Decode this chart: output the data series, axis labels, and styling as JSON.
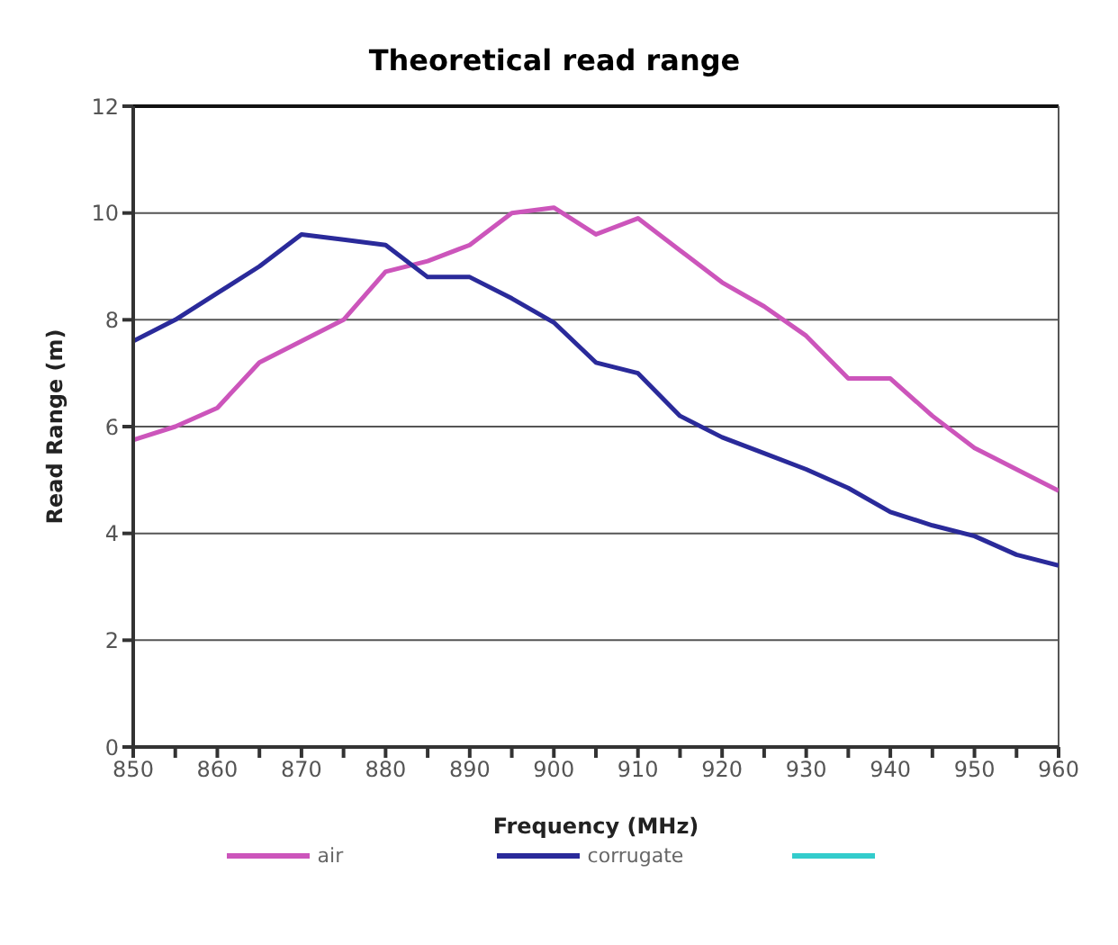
{
  "chart_data": {
    "type": "line",
    "title": "Theoretical read range",
    "xlabel": "Frequency (MHz)",
    "ylabel": "Read Range (m)",
    "x": [
      850,
      855,
      860,
      865,
      870,
      875,
      880,
      885,
      890,
      895,
      900,
      905,
      910,
      915,
      920,
      925,
      930,
      935,
      940,
      945,
      950,
      955,
      960
    ],
    "series": [
      {
        "name": "air",
        "color": "#cc55bb",
        "values": [
          5.75,
          6.0,
          6.35,
          7.2,
          7.6,
          8.0,
          8.9,
          9.1,
          9.4,
          10.0,
          10.1,
          9.6,
          9.9,
          9.3,
          8.7,
          8.25,
          7.7,
          6.9,
          6.9,
          6.2,
          5.6,
          5.2,
          4.8
        ]
      },
      {
        "name": "corrugate",
        "color": "#2a2a9a",
        "values": [
          7.6,
          8.0,
          8.5,
          9.0,
          9.6,
          9.5,
          9.4,
          8.8,
          8.8,
          8.4,
          7.95,
          7.2,
          7.0,
          6.2,
          5.8,
          5.5,
          5.2,
          4.85,
          4.4,
          4.15,
          3.95,
          3.6,
          3.4
        ]
      },
      {
        "color": "#33cccc",
        "values": [
          null,
          null,
          null,
          null,
          null,
          null,
          null,
          null,
          null,
          null,
          null,
          null,
          null,
          null,
          null,
          null,
          null,
          null,
          null,
          null,
          null,
          null,
          null
        ]
      }
    ],
    "xlim": [
      850,
      960
    ],
    "xticks": [
      850,
      {
        "value": 855,
        "label": null
      },
      860,
      {
        "value": 865,
        "label": null
      },
      870,
      {
        "value": 875,
        "label": null
      },
      880,
      {
        "value": 885,
        "label": null
      },
      890,
      {
        "value": 895,
        "label": null
      },
      900,
      {
        "value": 905,
        "label": null
      },
      910,
      {
        "value": 915,
        "label": null
      },
      920,
      {
        "value": 925,
        "label": null
      },
      930,
      {
        "value": 935,
        "label": null
      },
      940,
      {
        "value": 945,
        "label": null
      },
      950,
      {
        "value": 955,
        "label": null
      },
      960
    ],
    "ylim": [
      0,
      12
    ],
    "yticks": [
      0,
      2,
      4,
      6,
      8,
      10,
      12
    ],
    "grid": "y",
    "legend": "bottom",
    "marker": "none",
    "line_style": "solid"
  }
}
